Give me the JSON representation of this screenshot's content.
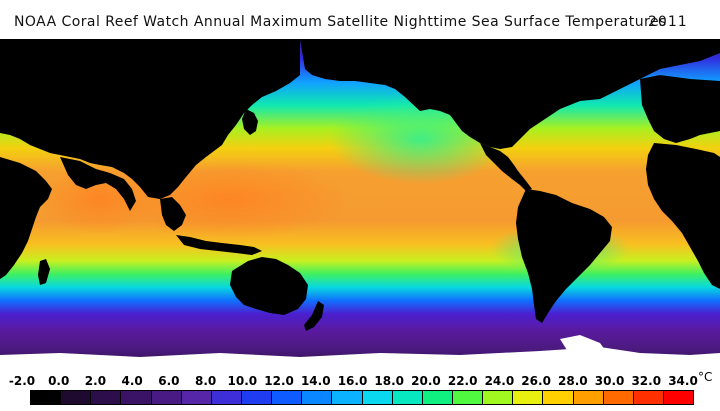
{
  "title": {
    "main": "NOAA Coral Reef Watch Annual Maximum Satellite Nighttime Sea Surface Temperatures",
    "year": "2011"
  },
  "colorbar": {
    "unit": "°C",
    "labels": [
      "-2.0",
      "0.0",
      "2.0",
      "4.0",
      "6.0",
      "8.0",
      "10.0",
      "12.0",
      "14.0",
      "16.0",
      "18.0",
      "20.0",
      "22.0",
      "24.0",
      "26.0",
      "28.0",
      "30.0",
      "32.0",
      "34.0"
    ],
    "colors": [
      "#000000",
      "#1e0a2e",
      "#2c0f4a",
      "#3b1366",
      "#4a1a84",
      "#5526a8",
      "#3d2ed8",
      "#1f3cf0",
      "#0e5cff",
      "#0a86ff",
      "#0ab2ff",
      "#0ad8f0",
      "#08e8c0",
      "#10f080",
      "#50f840",
      "#a0f820",
      "#e8f010",
      "#ffd000",
      "#ffa000",
      "#ff6a00",
      "#ff3000",
      "#ff0000"
    ]
  },
  "map": {
    "land_color": "#000000",
    "ice_color": "#ffffff",
    "warm_color": "#f5a030",
    "cool_color": "#6020c0"
  }
}
